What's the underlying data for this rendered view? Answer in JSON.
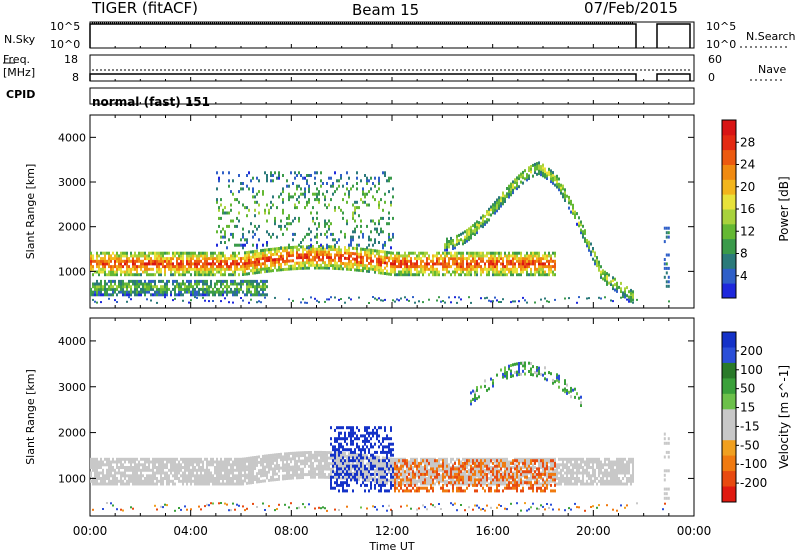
{
  "header": {
    "station": "TIGER (fitACF)",
    "beam": "Beam 15",
    "date": "07/Feb/2015"
  },
  "panels": {
    "nsky": {
      "label": "N.Sky",
      "y_ticks": [
        "10^5",
        "10^0"
      ],
      "right_label": "N.Search",
      "right_ticks": [
        "10^5",
        "10^0"
      ]
    },
    "freq": {
      "label_line1": "Freq.",
      "label_line2": "[MHz]",
      "y_ticks": [
        "18",
        "8"
      ],
      "right_label": "Nave",
      "right_ticks": [
        "60",
        "0"
      ]
    },
    "cpid": {
      "label": "CPID",
      "value": "normal (fast) 151"
    }
  },
  "chart_data": [
    {
      "type": "heatmap",
      "title": "",
      "quantity": "Power",
      "ylabel": "Slant Range [km]",
      "xlabel": "",
      "ylim": [
        180,
        4500
      ],
      "yticks": [
        "1000",
        "2000",
        "3000",
        "4000"
      ],
      "xlim": [
        0,
        24
      ],
      "colorbar": {
        "label": "Power [dB]",
        "ticks": [
          "4",
          "8",
          "12",
          "16",
          "20",
          "24",
          "28"
        ],
        "colors": [
          "#1e28dc",
          "#2f5fc8",
          "#2b7a7a",
          "#3a9a4a",
          "#64b833",
          "#a8d23c",
          "#e8e23a",
          "#f2b51c",
          "#f08a10",
          "#ec5a10",
          "#e42a12",
          "#d81414"
        ]
      },
      "data_gap_hours": [
        21.7,
        22.7
      ],
      "echo_bands": [
        {
          "feature": "main near-range band",
          "start_h": 0.0,
          "end_h": 18.5,
          "range_km": [
            900,
            1400
          ],
          "peak_power_db": 28
        },
        {
          "feature": "lower band",
          "start_h": 0.0,
          "end_h": 7.0,
          "range_km": [
            450,
            800
          ],
          "peak_power_db": 12
        },
        {
          "feature": "rising arc",
          "start_h": 14.0,
          "end_h": 21.6,
          "range_km": [
            1400,
            3500
          ],
          "peak_power_db": 16
        },
        {
          "feature": "scattered far range",
          "start_h": 5.0,
          "end_h": 12.0,
          "range_km": [
            1500,
            3200
          ],
          "peak_power_db": 12
        }
      ]
    },
    {
      "type": "heatmap",
      "title": "",
      "quantity": "Velocity",
      "ylabel": "Slant Range [km]",
      "xlabel": "Time UT",
      "ylim": [
        180,
        4500
      ],
      "yticks": [
        "1000",
        "2000",
        "3000",
        "4000"
      ],
      "xlim": [
        0,
        24
      ],
      "xticks": [
        "00:00",
        "04:00",
        "08:00",
        "12:00",
        "16:00",
        "20:00",
        "00:00"
      ],
      "colorbar": {
        "label": "Velocity [m s^-1]",
        "ticks": [
          "200",
          "100",
          "50",
          "15",
          "-15",
          "-50",
          "-100",
          "-200"
        ],
        "colors": [
          "#1432c8",
          "#2b4fd8",
          "#2a7a2a",
          "#3aa03a",
          "#6cc04a",
          "#c8c8c8",
          "#c8c8c8",
          "#f0a020",
          "#f07a10",
          "#e84a10",
          "#e01a10"
        ]
      },
      "data_gap_hours": [
        21.7,
        22.7
      ],
      "echo_bands": [
        {
          "feature": "ground scatter band",
          "start_h": 0.0,
          "end_h": 21.6,
          "range_km": [
            850,
            1400
          ],
          "velocity_ms": 0
        },
        {
          "feature": "strong approach region",
          "start_h": 9.5,
          "end_h": 12.0,
          "range_km": [
            700,
            2100
          ],
          "velocity_ms": 200
        },
        {
          "feature": "receding patches",
          "start_h": 12.0,
          "end_h": 18.5,
          "range_km": [
            700,
            1400
          ],
          "velocity_ms": -100
        },
        {
          "feature": "far arc",
          "start_h": 15.0,
          "end_h": 19.5,
          "range_km": [
            2500,
            3500
          ],
          "velocity_ms": 50
        }
      ]
    }
  ]
}
